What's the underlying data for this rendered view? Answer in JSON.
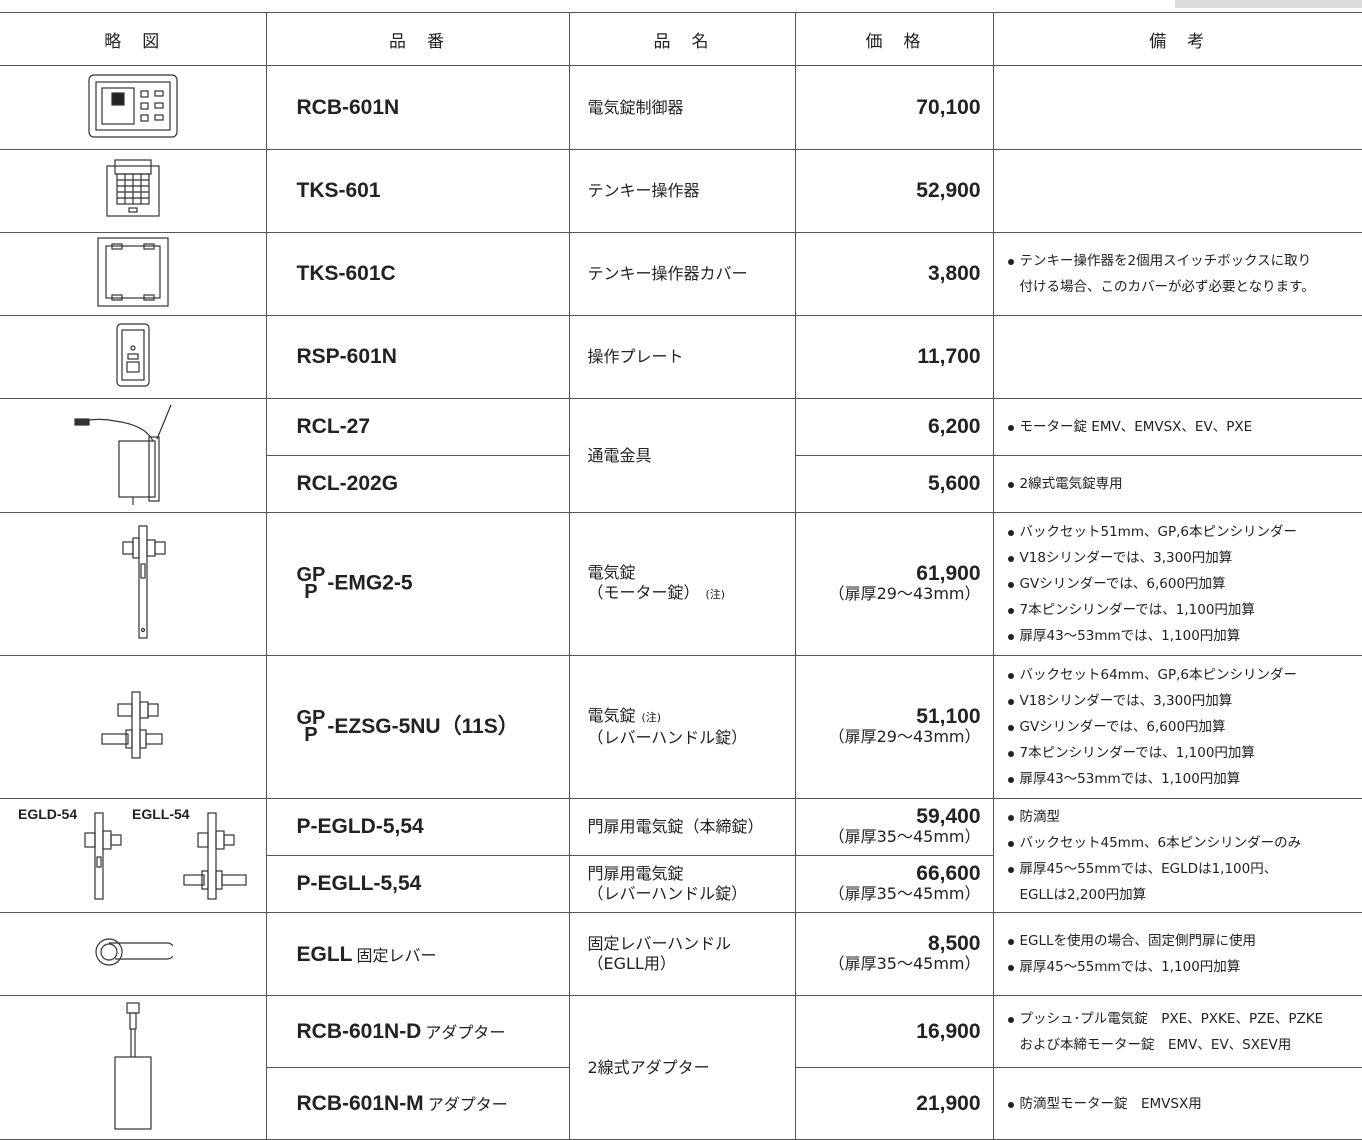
{
  "header": {
    "columns": [
      "略　図",
      "品　番",
      "品　名",
      "価　格",
      "備　考"
    ]
  },
  "diagram_labels": [
    "EGLD-54",
    "EGLL-54"
  ],
  "products": [
    {
      "part": "RCB-601N",
      "name": [
        [
          "電気錠制御器"
        ]
      ],
      "price": "70,100"
    },
    {
      "part": "TKS-601",
      "name": [
        [
          "テンキー操作器"
        ]
      ],
      "price": "52,900"
    },
    {
      "part": "TKS-601C",
      "name": [
        [
          "テンキー操作器カバー"
        ]
      ],
      "price": "3,800",
      "remarks": [
        [
          "テンキー操作器を2個用スイッチボックスに取り",
          "付ける場合、このカバーが必ず必要となります。"
        ]
      ]
    },
    {
      "part": "RSP-601N",
      "name": [
        [
          "操作プレート"
        ]
      ],
      "price": "11,700"
    },
    {
      "part": "RCL-27",
      "name": [
        [
          "通電金具"
        ]
      ],
      "price": "6,200",
      "remarks": [
        [
          "モーター錠 EMV、EMVSX、EV、PXE"
        ]
      ]
    },
    {
      "part": "RCL-202G",
      "price": "5,600",
      "remarks": [
        [
          "2線式電気錠専用"
        ]
      ]
    },
    {
      "part_prefix": [
        "GP",
        "P"
      ],
      "part": "-EMG2-5",
      "name": [
        [
          "電気錠"
        ],
        [
          "（モーター錠）",
          "(注)"
        ]
      ],
      "price": "61,900",
      "thickness": "（扉厚29～43mm）",
      "remarks": [
        [
          "バックセット51mm、GP,6本ピンシリンダー"
        ],
        [
          "V18シリンダーでは、3,300円加算"
        ],
        [
          "GVシリンダーでは、6,600円加算"
        ],
        [
          "7本ピンシリンダーでは、1,100円加算"
        ],
        [
          "扉厚43～53mmでは、1,100円加算"
        ]
      ]
    },
    {
      "part_prefix": [
        "GP",
        "P"
      ],
      "part": "-EZSG-5NU（11S）",
      "name": [
        [
          "電気錠",
          "(注)"
        ],
        [
          "（レバーハンドル錠）"
        ]
      ],
      "price": "51,100",
      "thickness": "（扉厚29～43mm）",
      "remarks": [
        [
          "バックセット64mm、GP,6本ピンシリンダー"
        ],
        [
          "V18シリンダーでは、3,300円加算"
        ],
        [
          "GVシリンダーでは、6,600円加算"
        ],
        [
          "7本ピンシリンダーでは、1,100円加算"
        ],
        [
          "扉厚43～53mmでは、1,100円加算"
        ]
      ]
    },
    {
      "part": "P-EGLD-5,54",
      "name": [
        [
          "門扉用電気錠（本締錠）"
        ]
      ],
      "price": "59,400",
      "thickness": "（扉厚35～45mm）",
      "remarks": [
        [
          "防滴型"
        ],
        [
          "バックセット45mm、6本ピンシリンダーのみ"
        ],
        [
          "扉厚45～55mmでは、EGLDは1,100円、",
          "EGLLは2,200円加算"
        ]
      ]
    },
    {
      "part": "P-EGLL-5,54",
      "name": [
        [
          "門扉用電気錠"
        ],
        [
          "（レバーハンドル錠）"
        ]
      ],
      "price": "66,600",
      "thickness": "（扉厚35～45mm）"
    },
    {
      "part": "EGLL",
      "part_suffix": "固定レバー",
      "name": [
        [
          "固定レバーハンドル"
        ],
        [
          "（EGLL用）"
        ]
      ],
      "price": "8,500",
      "thickness": "（扉厚35～45mm）",
      "remarks": [
        [
          "EGLLを使用の場合、固定側門扉に使用"
        ],
        [
          "扉厚45～55mmでは、1,100円加算"
        ]
      ]
    },
    {
      "part": "RCB-601N-D",
      "part_suffix": "アダプター",
      "name": [
        [
          "2線式アダプター"
        ]
      ],
      "price": "16,900",
      "remarks": [
        [
          "プッシュ･プル電気錠　PXE、PXKE、PZE、PZKE",
          "および本締モーター錠　EMV、EV、SXEV用"
        ]
      ]
    },
    {
      "part": "RCB-601N-M",
      "part_suffix": "アダプター",
      "price": "21,900",
      "remarks": [
        [
          "防滴型モーター錠　EMVSX用"
        ]
      ]
    }
  ]
}
